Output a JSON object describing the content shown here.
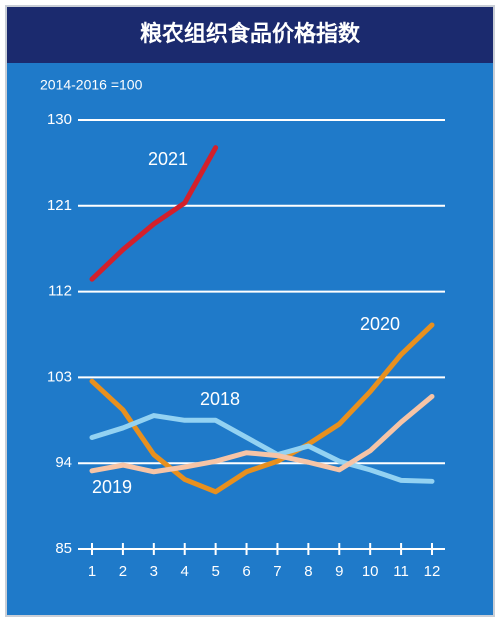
{
  "chart_data": {
    "type": "line",
    "title": "粮农组织食品价格指数",
    "subtitle": "2014-2016 =100",
    "categories": [
      "1",
      "2",
      "3",
      "4",
      "5",
      "6",
      "7",
      "8",
      "9",
      "10",
      "11",
      "12"
    ],
    "series": [
      {
        "name": "2021",
        "color": "#d3202b",
        "values": [
          113.3,
          116.4,
          119.1,
          121.3,
          127.1,
          null,
          null,
          null,
          null,
          null,
          null,
          null
        ]
      },
      {
        "name": "2020",
        "color": "#e8901e",
        "values": [
          102.6,
          99.6,
          94.9,
          92.3,
          91.0,
          93.1,
          94.2,
          96.0,
          98.1,
          101.5,
          105.4,
          108.5
        ]
      },
      {
        "name": "2018",
        "color": "#93d2f2",
        "values": [
          96.7,
          97.7,
          99.0,
          98.5,
          98.5,
          96.7,
          94.9,
          95.8,
          94.2,
          93.3,
          92.2,
          92.1
        ]
      },
      {
        "name": "2019",
        "color": "#f6c4a6",
        "values": [
          93.2,
          93.8,
          93.1,
          93.6,
          94.2,
          95.1,
          94.8,
          94.1,
          93.3,
          95.3,
          98.3,
          101.0
        ]
      }
    ],
    "ylim": [
      85,
      130
    ],
    "yticks": [
      85,
      94,
      103,
      112,
      121,
      130
    ],
    "grid": true
  }
}
